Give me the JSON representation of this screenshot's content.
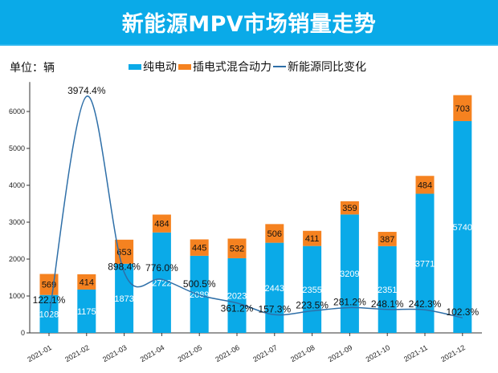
{
  "header": {
    "title": "新能源MPV市场销量走势"
  },
  "unit_label": "单位：辆",
  "colors": {
    "header_bg": "#0aaae8",
    "bev": "#0aaae8",
    "phev": "#f58220",
    "line": "#2e6fa8"
  },
  "chart_data": {
    "type": "bar",
    "stacked": true,
    "title": "新能源MPV市场销量走势",
    "ylabel": "单位：辆",
    "ylim": [
      0,
      6800
    ],
    "yticks": [
      0,
      1000,
      2000,
      3000,
      4000,
      5000,
      6000
    ],
    "grid": false,
    "legend_placement": "top-center",
    "categories": [
      "2021-01",
      "2021-02",
      "2021-03",
      "2021-04",
      "2021-05",
      "2021-06",
      "2021-07",
      "2021-08",
      "2021-09",
      "2021-10",
      "2021-11",
      "2021-12"
    ],
    "series": [
      {
        "name": "纯电动",
        "type": "bar",
        "values": [
          1028,
          1175,
          1873,
          2722,
          2089,
          2023,
          2443,
          2355,
          3209,
          2351,
          3771,
          5740
        ]
      },
      {
        "name": "插电式混合动力",
        "type": "bar",
        "values": [
          569,
          414,
          653,
          484,
          445,
          532,
          506,
          411,
          359,
          387,
          484,
          703
        ]
      },
      {
        "name": "新能源同比变化",
        "type": "line",
        "unit": "%",
        "values": [
          122.1,
          3974.4,
          898.4,
          776.0,
          500.5,
          361.2,
          157.3,
          223.5,
          281.2,
          248.1,
          242.3,
          102.3
        ]
      }
    ]
  }
}
